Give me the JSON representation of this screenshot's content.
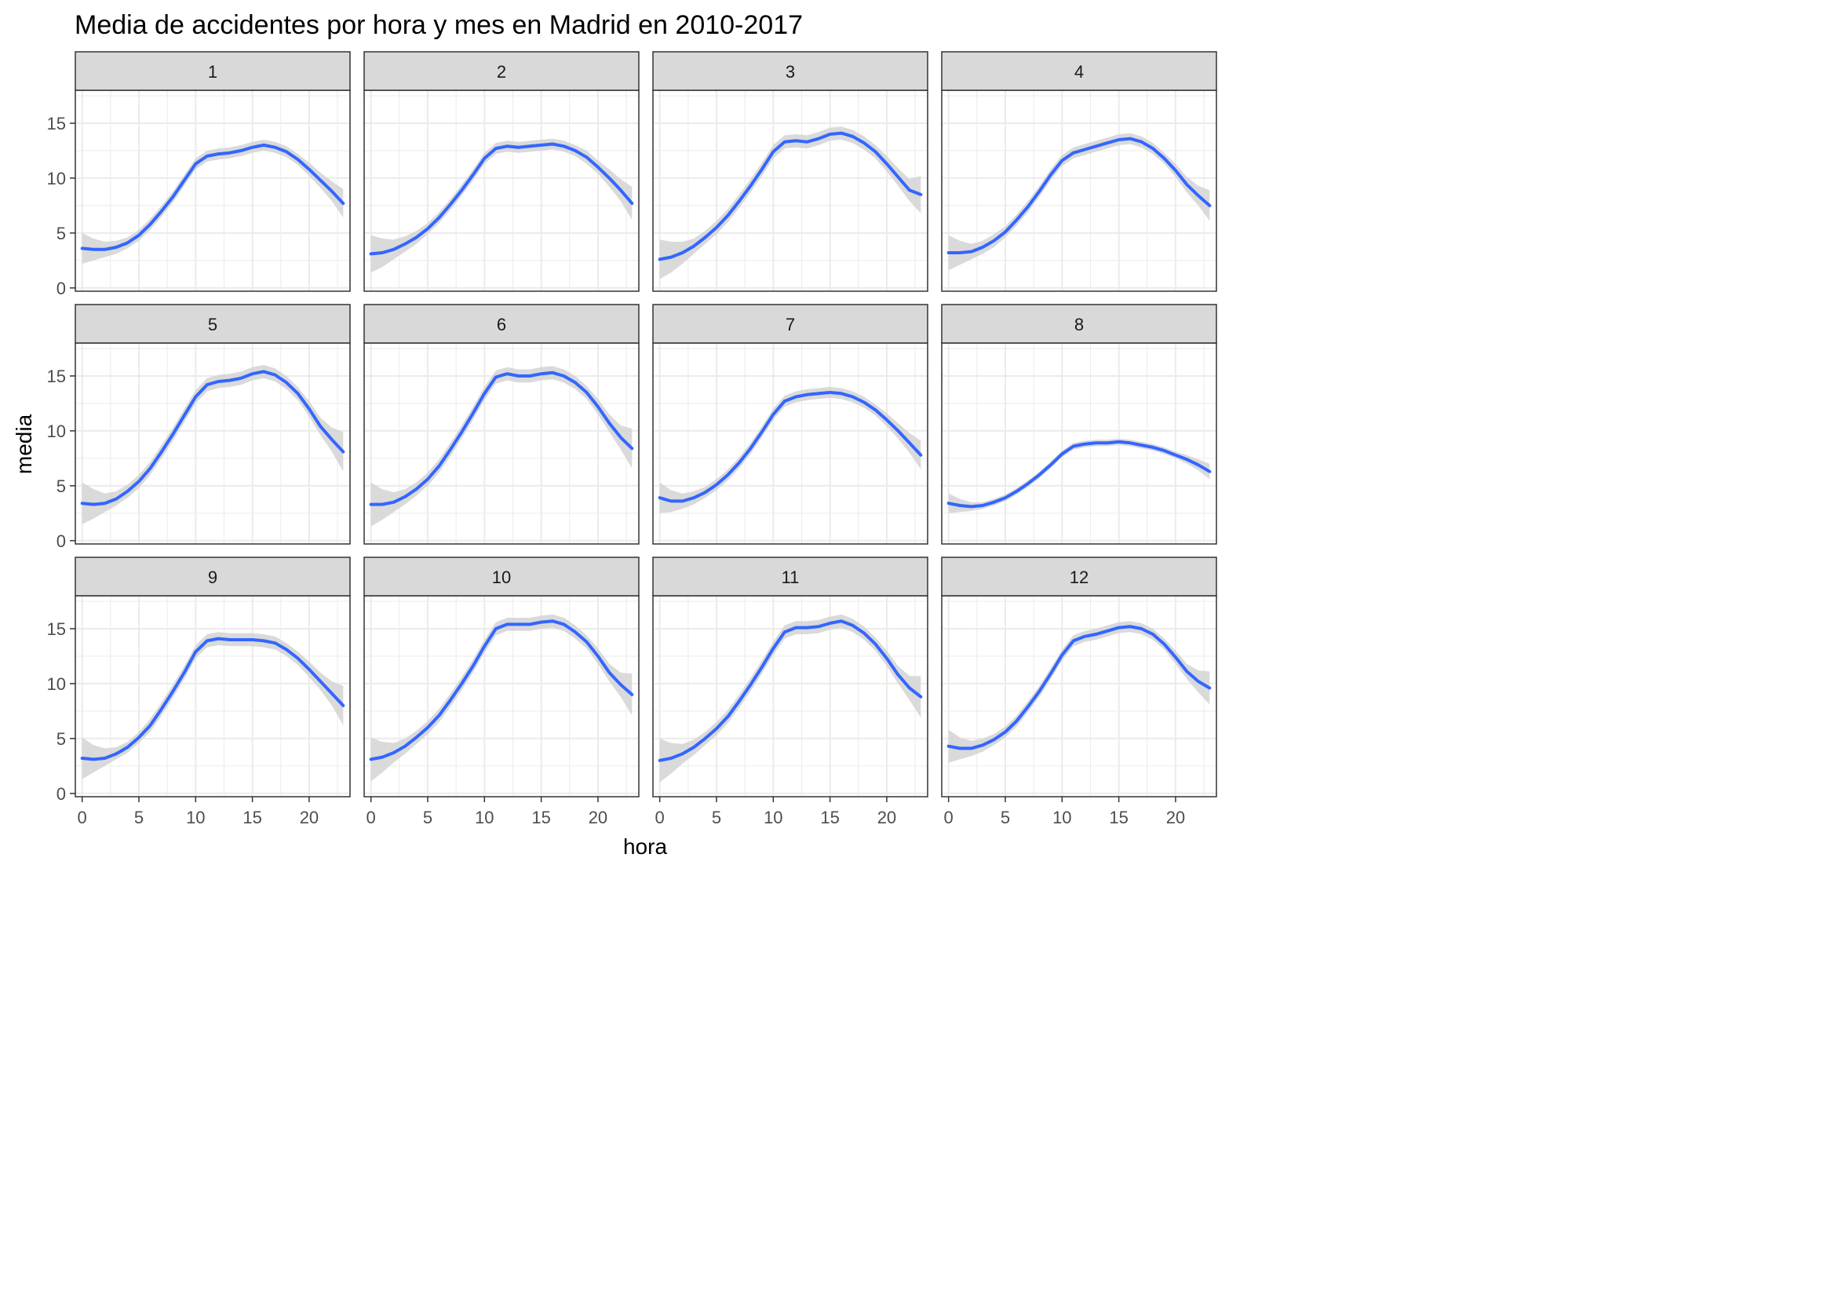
{
  "chart_data": {
    "type": "line",
    "title": "Media de accidentes por hora y mes en Madrid en 2010-2017",
    "xlabel": "hora",
    "ylabel": "media",
    "xlim": [
      -0.6,
      23.6
    ],
    "ylim": [
      -0.3,
      18
    ],
    "x_ticks": [
      0,
      5,
      10,
      15,
      20
    ],
    "y_ticks": [
      0,
      5,
      10,
      15
    ],
    "grid": true,
    "colors": {
      "line": "#3366ff",
      "ribbon": "#d3d3d3",
      "strip_bg": "#d9d9d9",
      "grid": "#ebebeb",
      "border": "#333333"
    },
    "x": [
      0,
      1,
      2,
      3,
      4,
      5,
      6,
      7,
      8,
      9,
      10,
      11,
      12,
      13,
      14,
      15,
      16,
      17,
      18,
      19,
      20,
      21,
      22,
      23
    ],
    "panels": [
      {
        "label": "1",
        "values": [
          3.6,
          3.5,
          3.5,
          3.7,
          4.1,
          4.8,
          5.8,
          7.0,
          8.3,
          9.8,
          11.3,
          12.0,
          12.2,
          12.3,
          12.5,
          12.8,
          13.0,
          12.8,
          12.4,
          11.7,
          10.8,
          9.8,
          8.8,
          7.7
        ],
        "lower": [
          2.2,
          2.5,
          2.8,
          3.1,
          3.6,
          4.3,
          5.3,
          6.5,
          7.8,
          9.3,
          10.8,
          11.5,
          11.7,
          11.8,
          12.0,
          12.3,
          12.5,
          12.3,
          11.9,
          11.2,
          10.2,
          9.1,
          7.9,
          6.4
        ],
        "upper": [
          5.0,
          4.5,
          4.2,
          4.3,
          4.6,
          5.3,
          6.3,
          7.5,
          8.8,
          10.3,
          11.8,
          12.5,
          12.7,
          12.8,
          13.0,
          13.3,
          13.5,
          13.3,
          12.9,
          12.2,
          11.4,
          10.5,
          9.7,
          9.0
        ]
      },
      {
        "label": "2",
        "values": [
          3.1,
          3.2,
          3.5,
          4.0,
          4.6,
          5.4,
          6.4,
          7.6,
          8.9,
          10.3,
          11.8,
          12.7,
          12.9,
          12.8,
          12.9,
          13.0,
          13.1,
          12.9,
          12.5,
          11.9,
          11.0,
          10.0,
          8.9,
          7.7
        ],
        "lower": [
          1.4,
          1.9,
          2.6,
          3.3,
          4.0,
          4.9,
          5.9,
          7.1,
          8.4,
          9.8,
          11.3,
          12.2,
          12.4,
          12.3,
          12.4,
          12.5,
          12.6,
          12.4,
          12.0,
          11.3,
          10.4,
          9.2,
          7.9,
          6.2
        ],
        "upper": [
          4.8,
          4.5,
          4.4,
          4.7,
          5.2,
          5.9,
          6.9,
          8.1,
          9.4,
          10.8,
          12.3,
          13.2,
          13.4,
          13.3,
          13.4,
          13.5,
          13.6,
          13.4,
          13.0,
          12.5,
          11.6,
          10.8,
          9.9,
          9.2
        ]
      },
      {
        "label": "3",
        "values": [
          2.6,
          2.8,
          3.2,
          3.8,
          4.6,
          5.5,
          6.6,
          7.9,
          9.3,
          10.8,
          12.4,
          13.3,
          13.4,
          13.3,
          13.6,
          14.0,
          14.1,
          13.8,
          13.2,
          12.4,
          11.3,
          10.1,
          8.9,
          8.5
        ],
        "lower": [
          0.8,
          1.4,
          2.2,
          3.1,
          4.0,
          4.9,
          6.0,
          7.3,
          8.7,
          10.2,
          11.8,
          12.7,
          12.8,
          12.7,
          13.0,
          13.4,
          13.5,
          13.2,
          12.6,
          11.8,
          10.6,
          9.3,
          7.9,
          6.8
        ],
        "upper": [
          4.4,
          4.2,
          4.2,
          4.5,
          5.2,
          6.1,
          7.2,
          8.5,
          9.9,
          11.4,
          13.0,
          13.9,
          14.0,
          13.9,
          14.2,
          14.6,
          14.7,
          14.4,
          13.8,
          13.0,
          12.0,
          10.9,
          9.9,
          10.2
        ]
      },
      {
        "label": "4",
        "values": [
          3.2,
          3.2,
          3.3,
          3.7,
          4.3,
          5.1,
          6.2,
          7.4,
          8.8,
          10.3,
          11.6,
          12.3,
          12.6,
          12.9,
          13.2,
          13.5,
          13.6,
          13.3,
          12.7,
          11.8,
          10.7,
          9.4,
          8.4,
          7.5
        ],
        "lower": [
          1.6,
          2.1,
          2.6,
          3.1,
          3.7,
          4.6,
          5.7,
          6.9,
          8.3,
          9.8,
          11.1,
          11.8,
          12.1,
          12.4,
          12.7,
          13.0,
          13.1,
          12.8,
          12.2,
          11.3,
          10.1,
          8.7,
          7.5,
          6.1
        ],
        "upper": [
          4.8,
          4.3,
          4.0,
          4.3,
          4.9,
          5.6,
          6.7,
          7.9,
          9.3,
          10.8,
          12.1,
          12.8,
          13.1,
          13.4,
          13.7,
          14.0,
          14.1,
          13.8,
          13.2,
          12.3,
          11.3,
          10.1,
          9.3,
          8.9
        ]
      },
      {
        "label": "5",
        "values": [
          3.4,
          3.3,
          3.4,
          3.8,
          4.5,
          5.4,
          6.6,
          8.1,
          9.7,
          11.4,
          13.1,
          14.2,
          14.5,
          14.6,
          14.8,
          15.2,
          15.4,
          15.1,
          14.4,
          13.4,
          12.0,
          10.4,
          9.2,
          8.1
        ],
        "lower": [
          1.5,
          2.0,
          2.6,
          3.2,
          3.9,
          4.8,
          6.0,
          7.5,
          9.1,
          10.8,
          12.5,
          13.6,
          13.9,
          14.0,
          14.2,
          14.6,
          14.8,
          14.5,
          13.8,
          12.8,
          11.3,
          9.6,
          8.1,
          6.3
        ],
        "upper": [
          5.3,
          4.7,
          4.3,
          4.5,
          5.1,
          6.0,
          7.2,
          8.7,
          10.3,
          12.0,
          13.7,
          14.8,
          15.1,
          15.2,
          15.4,
          15.8,
          16.0,
          15.7,
          15.0,
          14.0,
          12.7,
          11.2,
          10.3,
          9.9
        ]
      },
      {
        "label": "6",
        "values": [
          3.3,
          3.3,
          3.5,
          4.0,
          4.7,
          5.6,
          6.8,
          8.3,
          9.9,
          11.6,
          13.4,
          14.9,
          15.2,
          15.0,
          15.0,
          15.2,
          15.3,
          15.0,
          14.4,
          13.5,
          12.2,
          10.7,
          9.4,
          8.4
        ],
        "lower": [
          1.3,
          1.9,
          2.6,
          3.3,
          4.1,
          5.0,
          6.2,
          7.7,
          9.3,
          11.0,
          12.8,
          14.3,
          14.6,
          14.4,
          14.4,
          14.6,
          14.7,
          14.4,
          13.8,
          12.9,
          11.5,
          9.9,
          8.3,
          6.6
        ],
        "upper": [
          5.3,
          4.7,
          4.4,
          4.7,
          5.3,
          6.2,
          7.4,
          8.9,
          10.5,
          12.2,
          14.0,
          15.5,
          15.8,
          15.6,
          15.6,
          15.8,
          15.9,
          15.6,
          15.0,
          14.1,
          12.9,
          11.5,
          10.5,
          10.2
        ]
      },
      {
        "label": "7",
        "values": [
          3.9,
          3.6,
          3.6,
          3.9,
          4.4,
          5.1,
          6.0,
          7.1,
          8.4,
          9.9,
          11.5,
          12.7,
          13.1,
          13.3,
          13.4,
          13.5,
          13.4,
          13.1,
          12.6,
          11.9,
          11.0,
          10.0,
          8.9,
          7.8
        ],
        "lower": [
          2.5,
          2.6,
          2.9,
          3.3,
          3.9,
          4.6,
          5.5,
          6.6,
          7.9,
          9.4,
          11.0,
          12.2,
          12.6,
          12.8,
          12.9,
          13.0,
          12.9,
          12.6,
          12.1,
          11.4,
          10.4,
          9.3,
          8.0,
          6.5
        ],
        "upper": [
          5.3,
          4.6,
          4.3,
          4.5,
          4.9,
          5.6,
          6.5,
          7.6,
          8.9,
          10.4,
          12.0,
          13.2,
          13.6,
          13.8,
          13.9,
          14.0,
          13.9,
          13.6,
          13.1,
          12.4,
          11.6,
          10.7,
          9.8,
          9.1
        ]
      },
      {
        "label": "8",
        "values": [
          3.4,
          3.2,
          3.1,
          3.2,
          3.5,
          3.9,
          4.5,
          5.2,
          6.0,
          6.9,
          7.9,
          8.6,
          8.8,
          8.9,
          8.9,
          9.0,
          8.9,
          8.7,
          8.5,
          8.2,
          7.8,
          7.4,
          6.9,
          6.3
        ],
        "lower": [
          2.5,
          2.6,
          2.7,
          2.9,
          3.2,
          3.6,
          4.2,
          4.9,
          5.7,
          6.6,
          7.6,
          8.3,
          8.5,
          8.6,
          8.6,
          8.7,
          8.6,
          8.4,
          8.2,
          7.9,
          7.5,
          7.0,
          6.4,
          5.6
        ],
        "upper": [
          4.3,
          3.8,
          3.5,
          3.5,
          3.8,
          4.2,
          4.8,
          5.5,
          6.3,
          7.2,
          8.2,
          8.9,
          9.1,
          9.2,
          9.2,
          9.3,
          9.2,
          9.0,
          8.8,
          8.5,
          8.1,
          7.8,
          7.4,
          7.0
        ]
      },
      {
        "label": "9",
        "values": [
          3.2,
          3.1,
          3.2,
          3.6,
          4.2,
          5.1,
          6.2,
          7.7,
          9.3,
          11.0,
          12.9,
          13.9,
          14.1,
          14.0,
          14.0,
          14.0,
          13.9,
          13.7,
          13.1,
          12.3,
          11.3,
          10.2,
          9.1,
          8.0
        ],
        "lower": [
          1.3,
          1.9,
          2.5,
          3.1,
          3.7,
          4.6,
          5.6,
          7.1,
          8.7,
          10.4,
          12.3,
          13.3,
          13.5,
          13.4,
          13.4,
          13.4,
          13.3,
          13.1,
          12.5,
          11.7,
          10.6,
          9.4,
          8.0,
          6.2
        ],
        "upper": [
          5.1,
          4.4,
          4.1,
          4.2,
          4.7,
          5.6,
          6.8,
          8.3,
          9.9,
          11.6,
          13.5,
          14.5,
          14.7,
          14.6,
          14.6,
          14.6,
          14.5,
          14.3,
          13.7,
          12.9,
          12.0,
          11.0,
          10.2,
          9.8
        ]
      },
      {
        "label": "10",
        "values": [
          3.1,
          3.3,
          3.7,
          4.3,
          5.1,
          6.0,
          7.1,
          8.5,
          10.0,
          11.6,
          13.4,
          15.0,
          15.4,
          15.4,
          15.4,
          15.6,
          15.7,
          15.4,
          14.7,
          13.8,
          12.5,
          11.0,
          9.9,
          9.0
        ],
        "lower": [
          1.1,
          1.9,
          2.8,
          3.6,
          4.5,
          5.4,
          6.5,
          7.9,
          9.4,
          11.0,
          12.8,
          14.4,
          14.8,
          14.8,
          14.8,
          15.0,
          15.1,
          14.8,
          14.1,
          13.2,
          11.8,
          10.2,
          8.8,
          7.1
        ],
        "upper": [
          5.1,
          4.7,
          4.6,
          5.0,
          5.7,
          6.6,
          7.7,
          9.1,
          10.6,
          12.2,
          14.0,
          15.6,
          16.0,
          16.0,
          16.0,
          16.2,
          16.3,
          16.0,
          15.3,
          14.4,
          13.2,
          11.8,
          11.0,
          10.9
        ]
      },
      {
        "label": "11",
        "values": [
          3.0,
          3.2,
          3.6,
          4.2,
          5.0,
          5.9,
          7.0,
          8.4,
          9.9,
          11.5,
          13.2,
          14.7,
          15.1,
          15.1,
          15.2,
          15.5,
          15.7,
          15.3,
          14.6,
          13.6,
          12.3,
          10.8,
          9.6,
          8.8
        ],
        "lower": [
          1.0,
          1.8,
          2.7,
          3.5,
          4.4,
          5.3,
          6.4,
          7.8,
          9.3,
          10.9,
          12.6,
          14.1,
          14.5,
          14.5,
          14.6,
          14.9,
          15.1,
          14.7,
          14.0,
          13.0,
          11.6,
          10.0,
          8.5,
          6.9
        ],
        "upper": [
          5.0,
          4.6,
          4.5,
          4.9,
          5.6,
          6.5,
          7.6,
          9.0,
          10.5,
          12.1,
          13.8,
          15.3,
          15.7,
          15.7,
          15.8,
          16.1,
          16.3,
          15.9,
          15.2,
          14.2,
          13.0,
          11.6,
          10.7,
          10.7
        ]
      },
      {
        "label": "12",
        "values": [
          4.3,
          4.1,
          4.1,
          4.4,
          4.9,
          5.6,
          6.6,
          7.9,
          9.3,
          10.9,
          12.6,
          13.9,
          14.3,
          14.5,
          14.8,
          15.1,
          15.2,
          15.0,
          14.5,
          13.6,
          12.4,
          11.1,
          10.2,
          9.6
        ],
        "lower": [
          2.8,
          3.1,
          3.4,
          3.8,
          4.4,
          5.1,
          6.1,
          7.4,
          8.8,
          10.4,
          12.1,
          13.4,
          13.8,
          14.0,
          14.3,
          14.6,
          14.7,
          14.5,
          14.0,
          13.1,
          11.8,
          10.4,
          9.2,
          8.1
        ],
        "upper": [
          5.8,
          5.1,
          4.8,
          5.0,
          5.4,
          6.1,
          7.1,
          8.4,
          9.8,
          11.4,
          13.1,
          14.4,
          14.8,
          15.0,
          15.3,
          15.6,
          15.7,
          15.5,
          15.0,
          14.1,
          13.0,
          11.8,
          11.2,
          11.1
        ]
      }
    ]
  }
}
